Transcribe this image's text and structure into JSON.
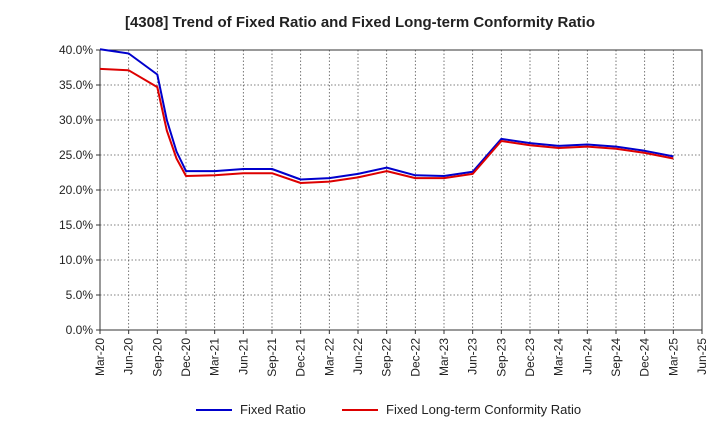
{
  "chart_data": {
    "type": "line",
    "title": "[4308]  Trend of Fixed Ratio and Fixed Long-term Conformity Ratio",
    "xlabel": "",
    "ylabel": "",
    "ylim": [
      0,
      40
    ],
    "yticks": [
      "0.0%",
      "5.0%",
      "10.0%",
      "15.0%",
      "20.0%",
      "25.0%",
      "30.0%",
      "35.0%",
      "40.0%"
    ],
    "y_tick_values": [
      0,
      5,
      10,
      15,
      20,
      25,
      30,
      35,
      40
    ],
    "xticks": [
      "Mar-20",
      "Jun-20",
      "Sep-20",
      "Dec-20",
      "Mar-21",
      "Jun-21",
      "Sep-21",
      "Dec-21",
      "Mar-22",
      "Jun-22",
      "Sep-22",
      "Dec-22",
      "Mar-23",
      "Jun-23",
      "Sep-23",
      "Dec-23",
      "Mar-24",
      "Jun-24",
      "Sep-24",
      "Dec-24",
      "Mar-25",
      "Jun-25"
    ],
    "grid": true,
    "legend_position": "bottom",
    "x": [
      "Mar-20",
      "Jun-20",
      "Sep-20",
      "Oct-20",
      "Nov-20",
      "Dec-20",
      "Mar-21",
      "Jun-21",
      "Sep-21",
      "Dec-21",
      "Mar-22",
      "Jun-22",
      "Sep-22",
      "Dec-22",
      "Mar-23",
      "Jun-23",
      "Sep-23",
      "Dec-23",
      "Mar-24",
      "Jun-24",
      "Sep-24",
      "Dec-24",
      "Mar-25"
    ],
    "x_positions": [
      0,
      1,
      2,
      2.33,
      2.67,
      3,
      4,
      5,
      6,
      7,
      8,
      9,
      10,
      11,
      12,
      13,
      14,
      15,
      16,
      17,
      18,
      19,
      20
    ],
    "series": [
      {
        "name": "Fixed Ratio",
        "color": "#0000cc",
        "values": [
          40.1,
          39.5,
          36.5,
          30.0,
          25.5,
          22.7,
          22.7,
          23.0,
          23.0,
          21.5,
          21.7,
          22.3,
          23.2,
          22.1,
          22.0,
          22.6,
          27.3,
          26.7,
          26.3,
          26.5,
          26.2,
          25.6,
          24.8
        ]
      },
      {
        "name": "Fixed Long-term Conformity Ratio",
        "color": "#dd0000",
        "values": [
          37.3,
          37.1,
          34.7,
          28.5,
          24.5,
          22.0,
          22.1,
          22.4,
          22.4,
          21.0,
          21.2,
          21.8,
          22.7,
          21.7,
          21.7,
          22.3,
          27.0,
          26.4,
          26.0,
          26.2,
          25.9,
          25.3,
          24.5
        ]
      }
    ]
  }
}
